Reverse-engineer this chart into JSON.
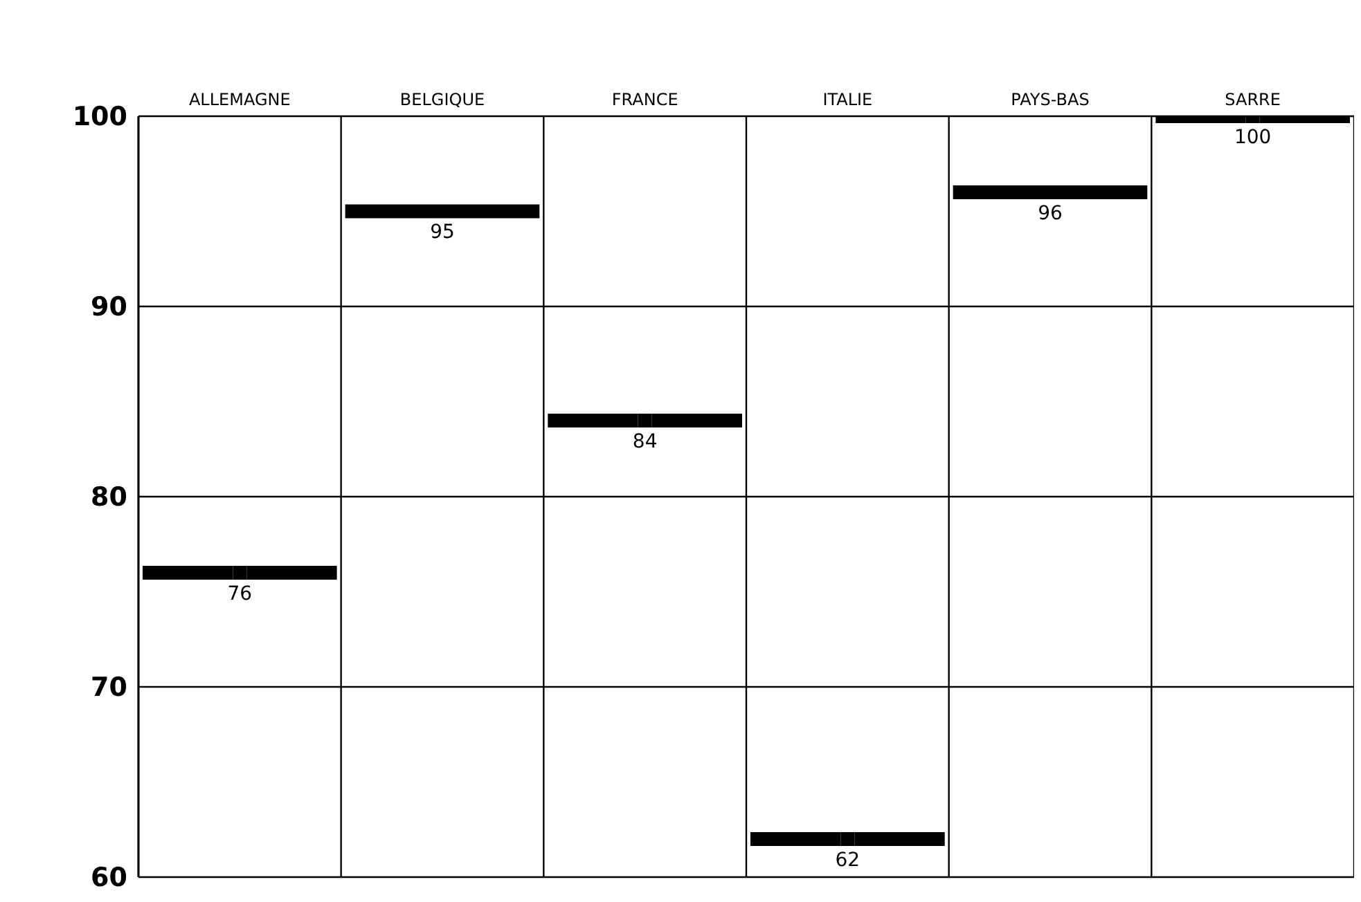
{
  "chart_data": {
    "type": "scatter",
    "categories": [
      "ALLEMAGNE",
      "BELGIQUE",
      "FRANCE",
      "ITALIE",
      "PAYS-BAS",
      "SARRE"
    ],
    "series": [
      {
        "color": "#000000",
        "values": [
          76,
          95,
          84,
          62,
          96,
          100
        ]
      }
    ],
    "ylim": [
      60,
      100
    ],
    "yticks": [
      60,
      70,
      80,
      90,
      100
    ],
    "grid": true,
    "data_labels": true
  }
}
